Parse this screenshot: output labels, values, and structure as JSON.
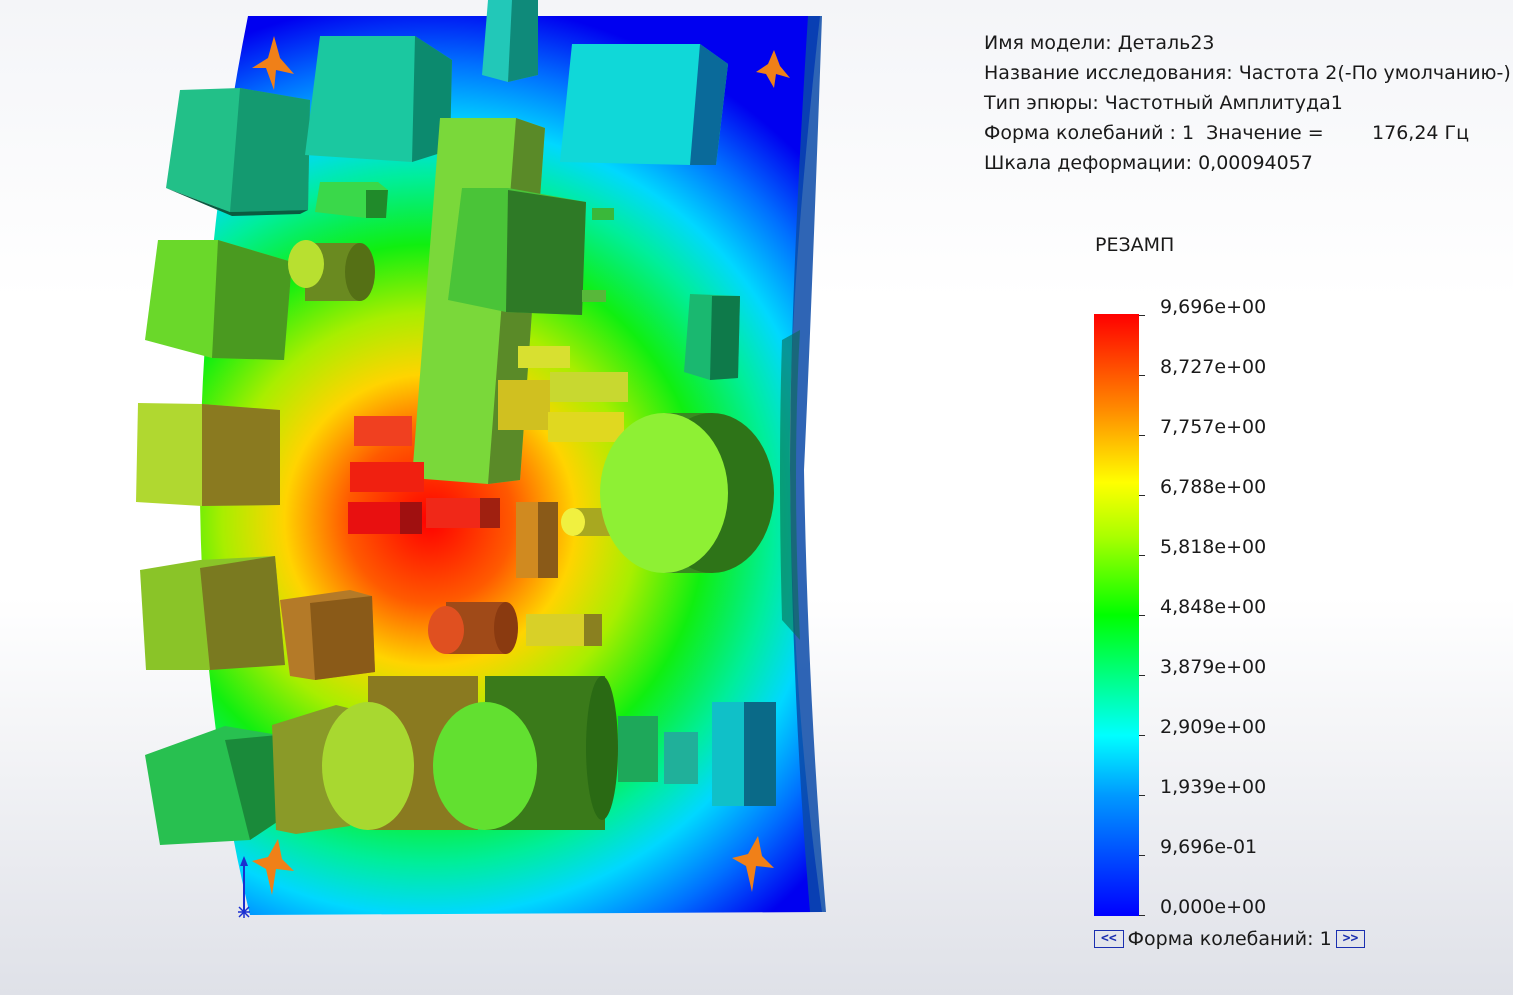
{
  "info": {
    "model_name": "Имя модели: Деталь23",
    "study_name": "Название исследования: Частота 2(-По умолчанию-)",
    "plot_type": "Тип эпюры: Частотный Амплитуда1",
    "mode_shape": "Форма колебаний : 1  Значение =        176,24 Гц",
    "deformation_scale": "Шкала деформации: 0,00094057"
  },
  "legend": {
    "title": "РЕЗАМП",
    "ticks": [
      "9,696e+00",
      "8,727e+00",
      "7,757e+00",
      "6,788e+00",
      "5,818e+00",
      "4,848e+00",
      "3,879e+00",
      "2,909e+00",
      "1,939e+00",
      "9,696e-01",
      "0,000e+00"
    ],
    "colors": [
      "#ff0000",
      "#ff8c00",
      "#ffff00",
      "#aaff00",
      "#00ff00",
      "#00ff9a",
      "#00ffff",
      "#0099ff",
      "#0000ff"
    ]
  },
  "navigation": {
    "prev_label": "<<",
    "mode_label": "Форма колебаний: 1",
    "next_label": ">>"
  },
  "model": {
    "description_icons": [
      "fixture-icon",
      "fixture-icon",
      "fixture-icon",
      "fixture-icon",
      "triad-icon"
    ]
  }
}
